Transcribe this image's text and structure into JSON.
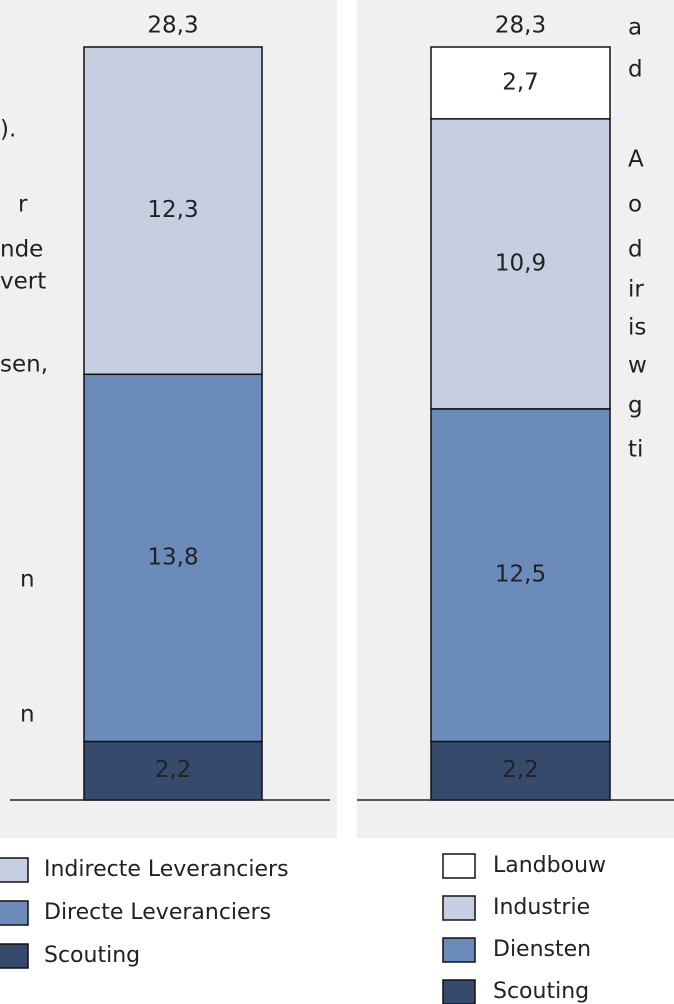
{
  "chart_data": [
    {
      "type": "stacked_bar",
      "ylim": [
        0,
        28.3
      ],
      "total": 28.3,
      "total_label": "28,3",
      "series": [
        {
          "name": "Indirecte Leveranciers",
          "color": "#c5cfe1",
          "values": [
            12.3
          ],
          "value_labels": [
            "12,3"
          ]
        },
        {
          "name": "Directe Leveranciers",
          "color": "#6b8cba",
          "values": [
            13.8
          ],
          "value_labels": [
            "13,8"
          ]
        },
        {
          "name": "Scouting",
          "color": "#364b6c",
          "values": [
            2.2
          ],
          "value_labels": [
            "2,2"
          ]
        }
      ]
    },
    {
      "type": "stacked_bar",
      "ylim": [
        0,
        28.3
      ],
      "total": 28.3,
      "total_label": "28,3",
      "series": [
        {
          "name": "Landbouw",
          "color": "#ffffff",
          "values": [
            2.7
          ],
          "value_labels": [
            "2,7"
          ]
        },
        {
          "name": "Industrie",
          "color": "#c5cfe1",
          "values": [
            10.9
          ],
          "value_labels": [
            "10,9"
          ]
        },
        {
          "name": "Diensten",
          "color": "#6b8cba",
          "values": [
            12.5
          ],
          "value_labels": [
            "12,5"
          ]
        },
        {
          "name": "Scouting",
          "color": "#364b6c",
          "values": [
            2.2
          ],
          "value_labels": [
            "2,2"
          ]
        }
      ]
    }
  ],
  "left_margin_text": [
    ").",
    "r",
    "nde",
    "vert",
    "sen,",
    "n",
    "n"
  ],
  "right_margin_text": [
    "a",
    "d",
    "A",
    "o",
    "d",
    "ir",
    "is",
    "w",
    "g",
    "ti"
  ]
}
